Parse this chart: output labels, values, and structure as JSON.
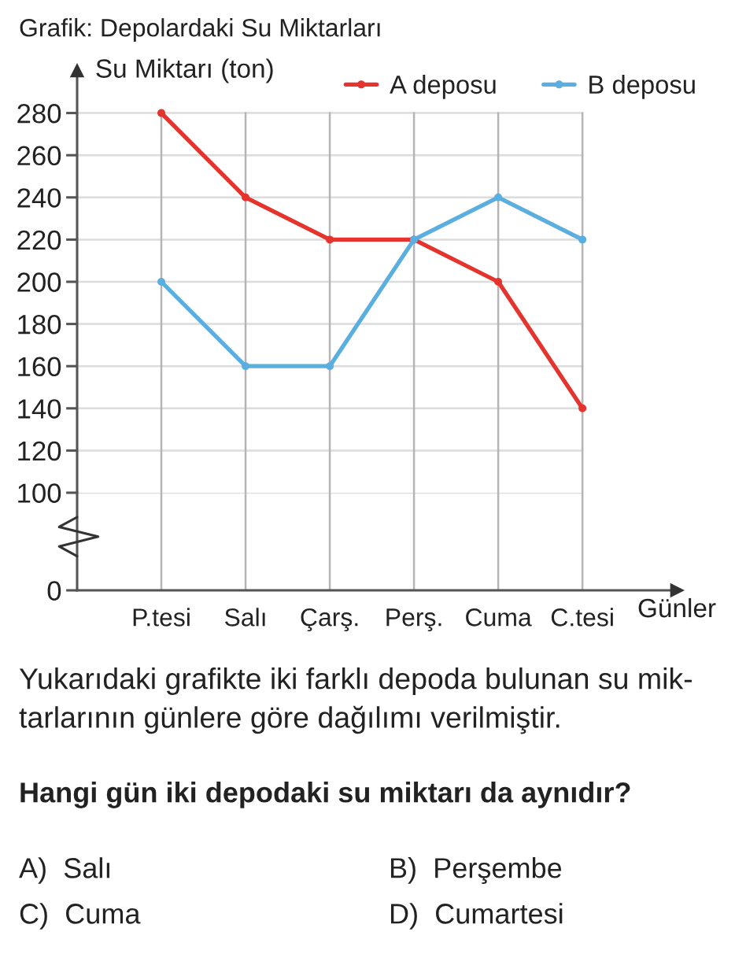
{
  "chart_data": [
    {
      "type": "line",
      "title": "Grafik: Depolardaki Su Miktarları",
      "ylabel": "Su Miktarı (ton)",
      "categories": [
        null,
        null,
        null,
        null,
        null,
        null
      ],
      "series": [
        {
          "name": "A deposu",
          "color": "#e5332d",
          "values": [
            280,
            240,
            220,
            220,
            200,
            140
          ]
        },
        {
          "name": "B deposu",
          "color": "#5aaee0",
          "values": [
            200,
            160,
            160,
            220,
            240,
            220
          ]
        }
      ],
      "ylim": [
        100,
        300
      ],
      "yticks": [
        120,
        140,
        160,
        180,
        200,
        220,
        240,
        260,
        280
      ],
      "tick_labels": "y",
      "grid": true,
      "legend": "top right",
      "marker": "circle",
      "line_style": "solid",
      "annotations": [
        "Yukarıdaki grafikte iki farklı depoda bulunan su mik-\ntarlarının günlere göre dağılımı verilmiştir.",
        "Hangi gün iki depodaki su miktarı da aynıdır?",
        "A)  Salı",
        "B)  Perşembe",
        "C)  Cuma",
        "D)  Cumartesi"
      ]
    },
    {
      "type": "line",
      "xlabel": "Günler",
      "categories": [
        "P.tesi",
        "Salı",
        "Çarş.",
        "Perş.",
        "Cuma",
        "C.tesi"
      ],
      "ylim": [
        0,
        100
      ],
      "yticks": [
        0,
        100
      ],
      "grid": true
    }
  ]
}
